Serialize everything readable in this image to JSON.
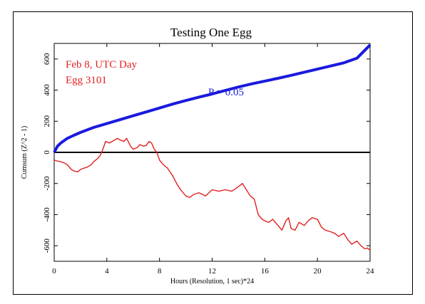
{
  "chart_data": {
    "type": "line",
    "title": "Testing One Egg",
    "xlabel": "Hours (Resolution, 1 sec)*24",
    "ylabel": "Cumsum (Z^2 - 1)",
    "xlim": [
      0,
      24
    ],
    "ylim": [
      -700,
      700
    ],
    "xticks": [
      0,
      4,
      8,
      12,
      16,
      20,
      24
    ],
    "yticks": [
      -600,
      -400,
      -200,
      0,
      200,
      400,
      600
    ],
    "annotations": [
      {
        "text": "Feb 8, UTC Day",
        "color": "#e02020"
      },
      {
        "text": "Egg 3101",
        "color": "#e02020"
      },
      {
        "text": "P = 0.05",
        "color": "#1a1adf"
      }
    ],
    "series": [
      {
        "role": "probability-envelope",
        "color": "#1a1adf",
        "x": [
          0,
          0.25,
          0.5,
          1,
          1.5,
          2,
          3,
          4,
          5,
          6,
          7,
          8,
          9,
          10,
          11,
          12,
          13,
          14,
          15,
          16,
          17,
          18,
          19,
          20,
          21,
          22,
          23,
          24
        ],
        "values": [
          0,
          40,
          60,
          90,
          110,
          128,
          160,
          185,
          210,
          235,
          260,
          285,
          310,
          333,
          355,
          375,
          398,
          420,
          440,
          458,
          476,
          495,
          515,
          535,
          555,
          575,
          605,
          690
        ]
      },
      {
        "role": "cumsum",
        "color": "#e02020",
        "x": [
          0,
          0.2,
          0.5,
          0.8,
          1,
          1.3,
          1.5,
          1.8,
          2,
          2.3,
          2.5,
          2.8,
          3,
          3.3,
          3.5,
          3.7,
          3.9,
          4.2,
          4.5,
          4.8,
          5,
          5.3,
          5.5,
          5.8,
          6,
          6.3,
          6.5,
          6.8,
          7,
          7.2,
          7.4,
          7.6,
          7.8,
          8,
          8.3,
          8.6,
          9,
          9.3,
          9.6,
          10,
          10.3,
          10.6,
          11,
          11.5,
          12,
          12.5,
          13,
          13.5,
          14,
          14.3,
          14.6,
          14.9,
          15.2,
          15.5,
          15.8,
          16,
          16.3,
          16.6,
          17,
          17.3,
          17.6,
          17.8,
          18,
          18.3,
          18.6,
          19,
          19.3,
          19.6,
          20,
          20.3,
          20.6,
          21,
          21.3,
          21.6,
          22,
          22.3,
          22.6,
          23,
          23.3,
          23.6,
          23.8,
          24
        ],
        "values": [
          -50,
          -55,
          -60,
          -70,
          -80,
          -110,
          -120,
          -125,
          -110,
          -100,
          -95,
          -80,
          -60,
          -40,
          -20,
          20,
          70,
          60,
          75,
          90,
          80,
          70,
          90,
          40,
          20,
          30,
          50,
          40,
          45,
          70,
          60,
          20,
          0,
          -50,
          -80,
          -100,
          -150,
          -200,
          -240,
          -280,
          -290,
          -270,
          -260,
          -280,
          -240,
          -250,
          -240,
          -250,
          -220,
          -200,
          -240,
          -280,
          -300,
          -400,
          -430,
          -440,
          -450,
          -430,
          -470,
          -500,
          -440,
          -420,
          -490,
          -500,
          -450,
          -470,
          -440,
          -420,
          -430,
          -480,
          -500,
          -510,
          -520,
          -540,
          -520,
          -560,
          -590,
          -570,
          -600,
          -620,
          -615,
          -630
        ]
      }
    ]
  }
}
